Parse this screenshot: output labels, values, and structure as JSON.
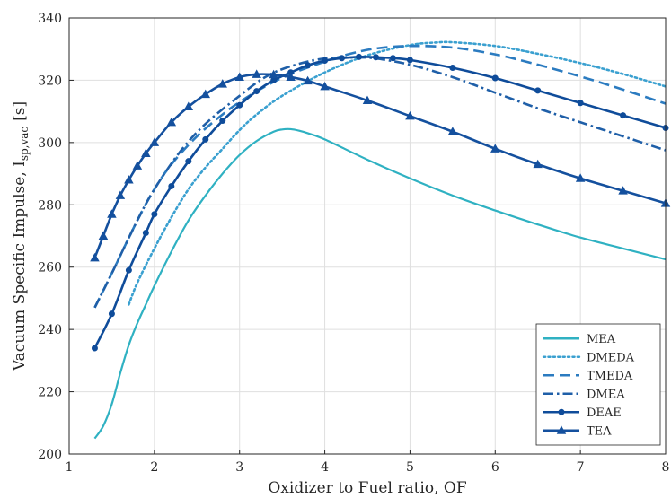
{
  "chart_data": {
    "type": "line",
    "title": "",
    "xlabel": "Oxidizer to Fuel ratio, OF",
    "ylabel": {
      "main": "Vacuum Specific Impulse, I",
      "sub": "sp,vac",
      "unit": "[s]"
    },
    "xlim": [
      1,
      8
    ],
    "ylim": [
      200,
      340
    ],
    "xticks": [
      "1",
      "2",
      "3",
      "4",
      "5",
      "6",
      "7",
      "8"
    ],
    "yticks": [
      "200",
      "220",
      "240",
      "260",
      "280",
      "300",
      "320",
      "340"
    ],
    "grid": true,
    "legend_position": "bottom-right",
    "series": [
      {
        "name": "MEA",
        "color": "#2fb1c2",
        "style": "solid",
        "marker": "none",
        "x": [
          1.3,
          1.4,
          1.5,
          1.6,
          1.7,
          1.8,
          1.9,
          2.0,
          2.2,
          2.4,
          2.6,
          2.8,
          3.0,
          3.2,
          3.4,
          3.5,
          3.6,
          3.7,
          3.8,
          4.0,
          4.5,
          5.0,
          5.5,
          6.0,
          6.5,
          7.0,
          7.5,
          8.0
        ],
        "y": [
          205,
          209,
          216,
          226,
          235,
          242,
          248,
          254,
          265,
          275,
          283,
          290,
          296,
          300.5,
          303.5,
          304.2,
          304.3,
          303.8,
          303,
          301,
          294.5,
          288.5,
          283,
          278.2,
          273.7,
          269.5,
          266,
          262.5
        ]
      },
      {
        "name": "DMEDA",
        "color": "#3aa0d0",
        "style": "dotted",
        "marker": "none",
        "x": [
          1.7,
          1.8,
          2.0,
          2.2,
          2.4,
          2.6,
          2.8,
          3.0,
          3.2,
          3.5,
          4.0,
          4.5,
          5.0,
          5.3,
          5.5,
          6.0,
          6.5,
          7.0,
          7.5,
          8.0
        ],
        "y": [
          248,
          255,
          266,
          276,
          285,
          292,
          298,
          304,
          309,
          315,
          322.5,
          328,
          331.3,
          332.1,
          332.2,
          331,
          328.5,
          325.5,
          322,
          318
        ]
      },
      {
        "name": "TMEDA",
        "color": "#2b7bc0",
        "style": "dashed",
        "marker": "none",
        "x": [
          1.3,
          1.5,
          1.8,
          2.0,
          2.2,
          2.5,
          2.8,
          3.0,
          3.3,
          3.6,
          4.0,
          4.3,
          4.6,
          5.0,
          5.5,
          6.0,
          6.5,
          7.0,
          7.5,
          8.0
        ],
        "y": [
          247,
          258,
          275,
          285,
          293,
          302,
          309,
          313,
          318,
          322,
          326,
          328.5,
          330.2,
          331,
          330.5,
          328.3,
          325,
          321.2,
          317,
          312.5
        ]
      },
      {
        "name": "DMEA",
        "color": "#1f5fa8",
        "style": "dashdot",
        "marker": "none",
        "x": [
          1.3,
          1.5,
          1.8,
          2.0,
          2.3,
          2.6,
          3.0,
          3.3,
          3.6,
          4.0,
          4.4,
          4.6,
          5.0,
          5.5,
          6.0,
          6.5,
          7.0,
          7.5,
          8.0
        ],
        "y": [
          247,
          258,
          275,
          285,
          297,
          306,
          315,
          321,
          324.5,
          327,
          327.3,
          327,
          325,
          321,
          316,
          311,
          306.5,
          302,
          297.5
        ]
      },
      {
        "name": "DEAE",
        "color": "#0f4c9a",
        "style": "solid",
        "marker": "circle",
        "x": [
          1.3,
          1.5,
          1.7,
          1.9,
          2.0,
          2.2,
          2.4,
          2.6,
          2.8,
          3.0,
          3.2,
          3.4,
          3.6,
          3.8,
          4.0,
          4.2,
          4.4,
          4.6,
          4.8,
          5.0,
          5.5,
          6.0,
          6.5,
          7.0,
          7.5,
          8.0
        ],
        "y": [
          234,
          245,
          259,
          271,
          277,
          286,
          294,
          301,
          307,
          312,
          316.5,
          320,
          322.5,
          324.8,
          326.3,
          327.1,
          327.5,
          327.4,
          327.1,
          326.5,
          324,
          320.7,
          316.7,
          312.7,
          308.7,
          304.7
        ]
      },
      {
        "name": "TEA",
        "color": "#14509e",
        "style": "solid",
        "marker": "triangle",
        "x": [
          1.3,
          1.4,
          1.5,
          1.6,
          1.7,
          1.8,
          1.9,
          2.0,
          2.2,
          2.4,
          2.6,
          2.8,
          3.0,
          3.2,
          3.4,
          3.6,
          3.8,
          4.0,
          4.5,
          5.0,
          5.5,
          6.0,
          6.5,
          7.0,
          7.5,
          8.0
        ],
        "y": [
          263,
          270,
          277,
          283,
          288,
          292.5,
          296.5,
          300,
          306.5,
          311.5,
          315.5,
          318.8,
          321,
          321.9,
          321.8,
          321,
          319.8,
          318,
          313.5,
          308.5,
          303.5,
          298,
          293,
          288.5,
          284.5,
          280.5
        ]
      }
    ]
  }
}
